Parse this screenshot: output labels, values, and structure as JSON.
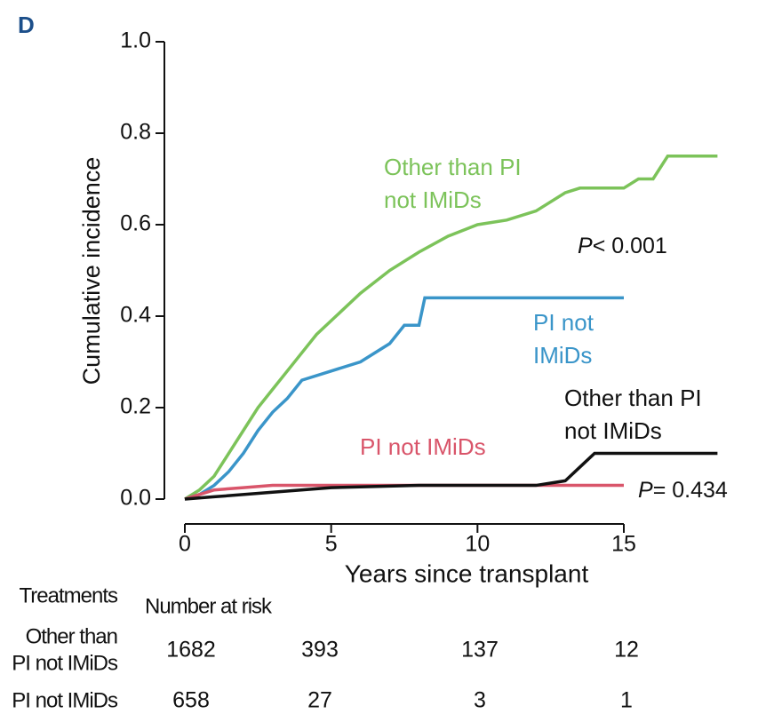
{
  "chart_data": {
    "type": "line",
    "panel_label": "D",
    "x_label": "Years since transplant",
    "y_label": "Cumulative incidence",
    "xlim": [
      0,
      15
    ],
    "xticks": [
      0,
      5,
      10,
      15
    ],
    "ylim": [
      0,
      1
    ],
    "yticks": [
      {
        "value": 0,
        "label": "0.0"
      },
      0.2,
      0.4,
      0.6,
      0.8,
      {
        "value": 1,
        "label": "1.0"
      }
    ],
    "series": [
      {
        "color": "#7cc35a",
        "x": [
          0,
          0.5,
          1,
          1.5,
          2,
          2.5,
          3,
          3.5,
          4,
          4.5,
          5,
          6,
          7,
          8,
          9,
          10,
          11,
          12,
          13,
          13.5,
          14,
          15,
          15.5,
          16,
          16.5,
          18.2
        ],
        "values": [
          0,
          0.02,
          0.05,
          0.1,
          0.15,
          0.2,
          0.24,
          0.28,
          0.32,
          0.36,
          0.39,
          0.45,
          0.5,
          0.54,
          0.575,
          0.6,
          0.61,
          0.63,
          0.67,
          0.68,
          0.68,
          0.68,
          0.7,
          0.7,
          0.75,
          0.75
        ]
      },
      {
        "color": "#3a95c9",
        "x": [
          0,
          0.5,
          1,
          1.5,
          2,
          2.5,
          3,
          3.5,
          4,
          5,
          6,
          7,
          7.5,
          8,
          8.2,
          15
        ],
        "values": [
          0,
          0.01,
          0.03,
          0.06,
          0.1,
          0.15,
          0.19,
          0.22,
          0.26,
          0.28,
          0.3,
          0.34,
          0.38,
          0.38,
          0.44,
          0.44
        ]
      },
      {
        "color": "#d9556a",
        "x": [
          0,
          0.5,
          1,
          2,
          3,
          4,
          15
        ],
        "values": [
          0,
          0.01,
          0.02,
          0.025,
          0.03,
          0.03,
          0.03
        ]
      },
      {
        "color": "#111111",
        "x": [
          0,
          1,
          3,
          5,
          8,
          12,
          13,
          13.5,
          14,
          15,
          18.2
        ],
        "values": [
          0,
          0.005,
          0.015,
          0.025,
          0.03,
          0.03,
          0.04,
          0.07,
          0.1,
          0.1,
          0.1
        ]
      }
    ],
    "annotations": [
      {
        "lines": [
          "Other than PI",
          "not IMiDs"
        ],
        "color": "#7cc35a"
      },
      {
        "lines": [
          "PI not",
          "IMiDs"
        ],
        "color": "#3a95c9"
      },
      {
        "lines": [
          "Other than PI",
          "not IMiDs"
        ],
        "color": "#111111"
      },
      {
        "lines": [
          "PI not IMiDs"
        ],
        "color": "#d9556a"
      }
    ],
    "p_values": [
      {
        "italic": "P",
        "text": "< 0.001"
      },
      {
        "italic": "P",
        "text": "= 0.434"
      }
    ],
    "risk_table": {
      "header": "Treatments",
      "subheader": "Number at risk",
      "rows": [
        {
          "label": [
            "Other than",
            "PI not IMiDs"
          ],
          "values": [
            1682,
            393,
            137,
            12
          ]
        },
        {
          "label": [
            "PI not IMiDs"
          ],
          "values": [
            658,
            27,
            3,
            1
          ]
        }
      ]
    }
  }
}
